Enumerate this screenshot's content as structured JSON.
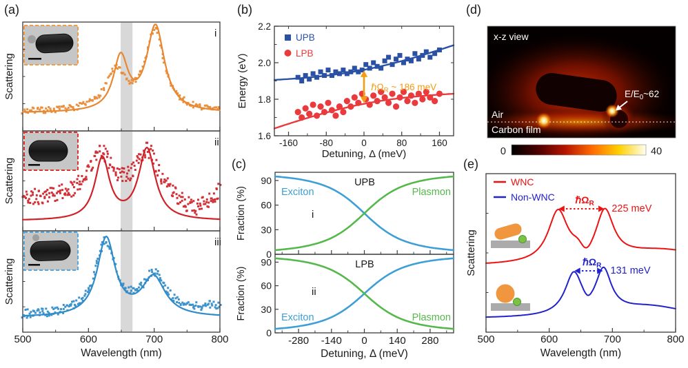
{
  "panels": {
    "a": {
      "label": "(a)"
    },
    "b": {
      "label": "(b)"
    },
    "c": {
      "label": "(c)"
    },
    "d": {
      "label": "(d)"
    },
    "e": {
      "label": "(e)"
    }
  },
  "chart_data": [
    {
      "panel": "a",
      "type": "line+scatter",
      "xlabel": "Wavelength (nm)",
      "ylabel": "Scattering",
      "xlim": [
        500,
        800
      ],
      "x_ticks": [
        500,
        600,
        700,
        800
      ],
      "x_minor_ticks": [
        550,
        650,
        750
      ],
      "shaded_band_nm": [
        649,
        667
      ],
      "subpanels": [
        {
          "label": "i",
          "color": "#E8872F",
          "inset_border_color": "#F09A45",
          "fit": {
            "baseline": 0.13,
            "peaks": [
              {
                "center_nm": 649,
                "fwhm_nm": 27,
                "amp": 0.62
              },
              {
                "center_nm": 702,
                "fwhm_nm": 33,
                "amp": 1.0
              }
            ]
          },
          "data": {
            "baseline": 0.14,
            "noise": 0.035,
            "n_points": 175,
            "seed": 7,
            "peaks": [
              {
                "center_nm": 641,
                "fwhm_nm": 38,
                "amp": 0.45
              },
              {
                "center_nm": 701,
                "fwhm_nm": 35,
                "amp": 0.93
              }
            ]
          }
        },
        {
          "label": "ii",
          "color": "#CF2128",
          "inset_border_color": "#E03131",
          "fit": {
            "baseline": 0.04,
            "peaks": [
              {
                "center_nm": 621,
                "fwhm_nm": 27,
                "amp": 0.8
              },
              {
                "center_nm": 689,
                "fwhm_nm": 31,
                "amp": 0.93
              }
            ]
          },
          "data": {
            "baseline": 0.32,
            "noise": 0.105,
            "n_points": 270,
            "seed": 11,
            "peaks": [
              {
                "center_nm": 618,
                "fwhm_nm": 46,
                "amp": 0.58
              },
              {
                "center_nm": 690,
                "fwhm_nm": 42,
                "amp": 0.62
              },
              {
                "center_nm": 763,
                "fwhm_nm": 55,
                "amp": -0.2
              },
              {
                "center_nm": 806,
                "fwhm_nm": 45,
                "amp": 0.18
              }
            ]
          }
        },
        {
          "label": "iii",
          "color": "#2F8BC9",
          "inset_border_color": "#55A6DE",
          "fit": {
            "baseline": 0.1,
            "peaks": [
              {
                "center_nm": 627,
                "fwhm_nm": 33,
                "amp": 1.0
              },
              {
                "center_nm": 699,
                "fwhm_nm": 43,
                "amp": 0.5
              }
            ]
          },
          "data": {
            "baseline": 0.12,
            "noise": 0.055,
            "n_points": 215,
            "seed": 23,
            "peaks": [
              {
                "center_nm": 626,
                "fwhm_nm": 38,
                "amp": 0.93
              },
              {
                "center_nm": 700,
                "fwhm_nm": 44,
                "amp": 0.5
              },
              {
                "center_nm": 790,
                "fwhm_nm": 60,
                "amp": 0.1
              }
            ]
          }
        }
      ]
    },
    {
      "panel": "b",
      "type": "scatter",
      "xlabel": "Detuning, Δ (meV)",
      "ylabel": "Energy (eV)",
      "xlim": [
        -190,
        190
      ],
      "ylim": [
        1.6,
        2.2
      ],
      "x_ticks": [
        -160,
        -80,
        0,
        80,
        160
      ],
      "y_ticks": [
        "1.6",
        "1.8",
        "2.0",
        "2.2"
      ],
      "exciton_energy_eV": 1.868,
      "rabi_splitting_meV": 186,
      "annotation": {
        "prefix": "ℏΩ",
        "sub": "R",
        "suffix": " ~ 186 meV",
        "color": "#F49C12"
      },
      "series": [
        {
          "name": "UPB",
          "marker": "square",
          "color": "#2B51A5",
          "points": [
            [
              -140,
              1.92
            ],
            [
              -132,
              1.9
            ],
            [
              -124,
              1.93
            ],
            [
              -116,
              1.91
            ],
            [
              -108,
              1.94
            ],
            [
              -100,
              1.92
            ],
            [
              -92,
              1.95
            ],
            [
              -84,
              1.93
            ],
            [
              -76,
              1.96
            ],
            [
              -68,
              1.93
            ],
            [
              -60,
              1.95
            ],
            [
              -52,
              1.94
            ],
            [
              -44,
              1.96
            ],
            [
              -36,
              1.94
            ],
            [
              -28,
              1.95
            ],
            [
              -20,
              1.97
            ],
            [
              -12,
              1.95
            ],
            [
              -4,
              1.96
            ],
            [
              4,
              1.99
            ],
            [
              12,
              1.97
            ],
            [
              20,
              2.0
            ],
            [
              28,
              1.98
            ],
            [
              36,
              1.97
            ],
            [
              44,
              2.01
            ],
            [
              52,
              2.03
            ],
            [
              60,
              1.99
            ],
            [
              68,
              2.02
            ],
            [
              76,
              2.04
            ],
            [
              84,
              2.0
            ],
            [
              92,
              2.02
            ],
            [
              100,
              2.01
            ],
            [
              108,
              2.05
            ],
            [
              116,
              2.02
            ],
            [
              124,
              2.04
            ],
            [
              132,
              2.06
            ],
            [
              140,
              2.03
            ],
            [
              150,
              2.05
            ],
            [
              160,
              2.07
            ]
          ]
        },
        {
          "name": "LPB",
          "marker": "circle",
          "color": "#E93B3D",
          "points": [
            [
              -140,
              1.73
            ],
            [
              -132,
              1.7
            ],
            [
              -124,
              1.75
            ],
            [
              -116,
              1.72
            ],
            [
              -108,
              1.77
            ],
            [
              -100,
              1.71
            ],
            [
              -92,
              1.76
            ],
            [
              -84,
              1.73
            ],
            [
              -76,
              1.78
            ],
            [
              -68,
              1.74
            ],
            [
              -60,
              1.71
            ],
            [
              -52,
              1.76
            ],
            [
              -44,
              1.73
            ],
            [
              -36,
              1.79
            ],
            [
              -28,
              1.76
            ],
            [
              -20,
              1.81
            ],
            [
              -12,
              1.78
            ],
            [
              -4,
              1.83
            ],
            [
              4,
              1.8
            ],
            [
              12,
              1.77
            ],
            [
              20,
              1.82
            ],
            [
              28,
              1.79
            ],
            [
              36,
              1.84
            ],
            [
              44,
              1.81
            ],
            [
              52,
              1.78
            ],
            [
              60,
              1.83
            ],
            [
              68,
              1.76
            ],
            [
              76,
              1.81
            ],
            [
              84,
              1.84
            ],
            [
              92,
              1.79
            ],
            [
              100,
              1.82
            ],
            [
              108,
              1.78
            ],
            [
              116,
              1.83
            ],
            [
              124,
              1.8
            ],
            [
              132,
              1.84
            ],
            [
              140,
              1.81
            ],
            [
              150,
              1.79
            ],
            [
              160,
              1.83
            ]
          ]
        }
      ]
    },
    {
      "panel": "c",
      "type": "line",
      "xlabel": "Detuning, Δ  (meV)",
      "ylabel": "Fraction (%)",
      "xlim": [
        -380,
        380
      ],
      "ylim": [
        0,
        100
      ],
      "x_ticks": [
        -280,
        -140,
        0,
        140,
        280
      ],
      "x_minor_ticks": [
        -350,
        -210,
        -70,
        70,
        210,
        350
      ],
      "y_ticks": [
        0,
        30,
        60,
        90
      ],
      "rabi_meV": 186,
      "subpanels": [
        {
          "label": "i",
          "branch": "UPB",
          "curves": [
            {
              "name": "Exciton",
              "color": "#3D9FD6",
              "sign": -1
            },
            {
              "name": "Plasmon",
              "color": "#55B84B",
              "sign": 1
            }
          ],
          "exciton_label_pos": "top-left",
          "plasmon_label_pos": "top-right"
        },
        {
          "label": "ii",
          "branch": "LPB",
          "curves": [
            {
              "name": "Exciton",
              "color": "#3D9FD6",
              "sign": 1
            },
            {
              "name": "Plasmon",
              "color": "#55B84B",
              "sign": -1
            }
          ],
          "exciton_label_pos": "bottom-left",
          "plasmon_label_pos": "bottom-right"
        }
      ]
    },
    {
      "panel": "d",
      "type": "field-map",
      "view_label": "x-z view",
      "medium_labels": [
        "Air",
        "Carbon film"
      ],
      "annotation": {
        "prefix": "E/E",
        "sub": "0",
        "suffix": "~62"
      },
      "colorbar": {
        "min": 0,
        "max": 40,
        "colors": [
          "#000000",
          "#4d0000",
          "#b51400",
          "#ff6a00",
          "#ffd000",
          "#fffff2"
        ]
      }
    },
    {
      "panel": "e",
      "type": "line",
      "xlabel": "Wavelength (nm)",
      "ylabel": "Scattering",
      "xlim": [
        500,
        800
      ],
      "x_ticks": [
        500,
        600,
        700,
        800
      ],
      "x_minor_ticks": [
        550,
        650,
        750
      ],
      "legend": [
        {
          "name": "WNC",
          "color": "#EE1111"
        },
        {
          "name": "Non-WNC",
          "color": "#2222CC"
        }
      ],
      "series": [
        {
          "name": "WNC",
          "color": "#EE1111",
          "offset": 0.72,
          "baseline": 0.07,
          "peaks": [
            {
              "center_nm": 614,
              "fwhm_nm": 38,
              "amp": 0.7
            },
            {
              "center_nm": 688,
              "fwhm_nm": 34,
              "amp": 0.66
            },
            {
              "center_nm": 645,
              "fwhm_nm": 22,
              "amp": 0.1
            },
            {
              "center_nm": 780,
              "fwhm_nm": 200,
              "amp": 0.22
            }
          ],
          "notch": {
            "center_nm": 659,
            "fwhm_nm": 26,
            "depth": 0.14
          },
          "peak_positions_nm": [
            614,
            688
          ],
          "rabi_label": {
            "prefix": "ℏΩ",
            "sub": "R"
          },
          "splitting_text": "225 meV"
        },
        {
          "name": "Non-WNC",
          "color": "#2222CC",
          "offset": 0.0,
          "baseline": 0.07,
          "peaks": [
            {
              "center_nm": 639,
              "fwhm_nm": 34,
              "amp": 0.57
            },
            {
              "center_nm": 686,
              "fwhm_nm": 30,
              "amp": 0.58
            },
            {
              "center_nm": 760,
              "fwhm_nm": 150,
              "amp": 0.16
            }
          ],
          "notch": {
            "center_nm": 661,
            "fwhm_nm": 20,
            "depth": 0.1
          },
          "peak_positions_nm": [
            639,
            686
          ],
          "rabi_label": {
            "prefix": "ℏΩ",
            "sub": "R"
          },
          "splitting_text": "131 meV"
        }
      ],
      "insets": [
        {
          "type": "tilted-nanorod-with-emitter-on-substrate"
        },
        {
          "type": "nanosphere-with-emitter-on-substrate"
        }
      ]
    }
  ]
}
